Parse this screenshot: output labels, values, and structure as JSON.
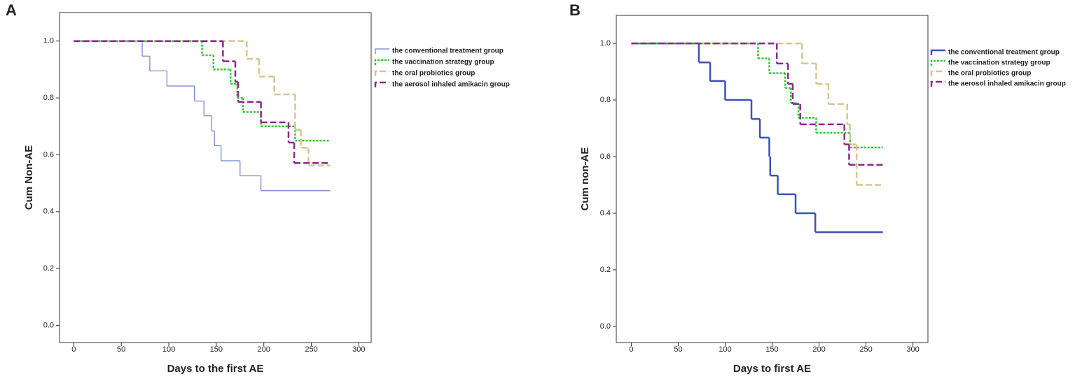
{
  "chart_data": [
    {
      "type": "step",
      "panel_label": "A",
      "x_label": "Days to the first AE",
      "y_label": "Cum Non-AE",
      "xlim": [
        -15,
        313
      ],
      "ylim": [
        -0.06,
        1.1
      ],
      "xticks": [
        0,
        50,
        100,
        150,
        200,
        250,
        300
      ],
      "yticks": [
        {
          "value": 0,
          "label": "0.0"
        },
        {
          "value": 0.2,
          "label": "0.2"
        },
        {
          "value": 0.4,
          "label": "0.4"
        },
        {
          "value": 0.6,
          "label": "0.6"
        },
        {
          "value": 0.8,
          "label": "0.8"
        },
        {
          "value": 1,
          "label": "1.0"
        }
      ],
      "series": [
        {
          "name": "the conventional treatment group",
          "color": "#6f7fd0",
          "style": "solid",
          "width": 1.2,
          "x": [
            0,
            72,
            80,
            98,
            127,
            137,
            145,
            148,
            155,
            175,
            197,
            270
          ],
          "values": [
            1,
            0.947,
            0.895,
            0.842,
            0.789,
            0.737,
            0.684,
            0.632,
            0.579,
            0.526,
            0.474,
            0.474
          ]
        },
        {
          "name": "the vaccination strategy group",
          "color": "#2fc52f",
          "style": "dotted",
          "width": 2.5,
          "x": [
            0,
            135,
            147,
            165,
            172,
            178,
            197,
            233,
            270
          ],
          "values": [
            1,
            0.95,
            0.9,
            0.85,
            0.8,
            0.75,
            0.7,
            0.65,
            0.65
          ]
        },
        {
          "name": "the oral probiotics group",
          "color": "#d8c58f",
          "style": "dashed",
          "width": 2.5,
          "x": [
            0,
            182,
            195,
            211,
            233,
            239,
            247,
            270
          ],
          "values": [
            1,
            0.9375,
            0.875,
            0.8125,
            0.6875,
            0.625,
            0.5625,
            0.5625
          ]
        },
        {
          "name": "the aerosol inhaled amikacin group",
          "color": "#8b2a8b",
          "style": "dashed",
          "width": 2.5,
          "x": [
            0,
            157,
            170,
            173,
            197,
            226,
            232,
            270
          ],
          "values": [
            1,
            0.929,
            0.857,
            0.786,
            0.714,
            0.643,
            0.571,
            0.571
          ]
        }
      ]
    },
    {
      "type": "step",
      "panel_label": "B",
      "x_label": "Days to first AE",
      "y_label": "Cum non-AE",
      "xlim": [
        -16,
        316
      ],
      "ylim": [
        -0.057,
        1.099
      ],
      "xticks": [
        0,
        50,
        100,
        150,
        200,
        250,
        300
      ],
      "yticks": [
        {
          "value": 0,
          "label": "0.0"
        },
        {
          "value": 0.2,
          "label": "0.2"
        },
        {
          "value": 0.4,
          "label": "0.4"
        },
        {
          "value": 0.6,
          "label": "0.6"
        },
        {
          "value": 0.8,
          "label": "0.8"
        },
        {
          "value": 1,
          "label": "1.0"
        }
      ],
      "series": [
        {
          "name": "the conventional treatment group",
          "color": "#3c52b8",
          "style": "solid",
          "width": 2.5,
          "x": [
            0,
            72,
            84,
            100,
            128,
            137,
            147,
            148,
            156,
            175,
            196,
            268
          ],
          "values": [
            1,
            0.933,
            0.867,
            0.8,
            0.733,
            0.667,
            0.6,
            0.533,
            0.467,
            0.4,
            0.333,
            0.333
          ]
        },
        {
          "name": "the vaccination strategy group",
          "color": "#2fc52f",
          "style": "dotted",
          "width": 2.5,
          "x": [
            0,
            135,
            147,
            164,
            170,
            178,
            197,
            233,
            268
          ],
          "values": [
            1,
            0.947,
            0.895,
            0.842,
            0.789,
            0.737,
            0.684,
            0.632,
            0.632
          ]
        },
        {
          "name": "the oral probiotics group",
          "color": "#d8c58f",
          "style": "dashed",
          "width": 2.5,
          "x": [
            0,
            182,
            197,
            210,
            230,
            233,
            240,
            268
          ],
          "values": [
            1,
            0.929,
            0.857,
            0.786,
            0.714,
            0.643,
            0.5,
            0.5
          ]
        },
        {
          "name": "the aerosol inhaled amikacin group",
          "color": "#8b2a8b",
          "style": "dashed",
          "width": 2.5,
          "x": [
            0,
            155,
            167,
            172,
            180,
            227,
            232,
            268
          ],
          "values": [
            1,
            0.929,
            0.857,
            0.786,
            0.714,
            0.643,
            0.571,
            0.571
          ]
        }
      ]
    }
  ]
}
